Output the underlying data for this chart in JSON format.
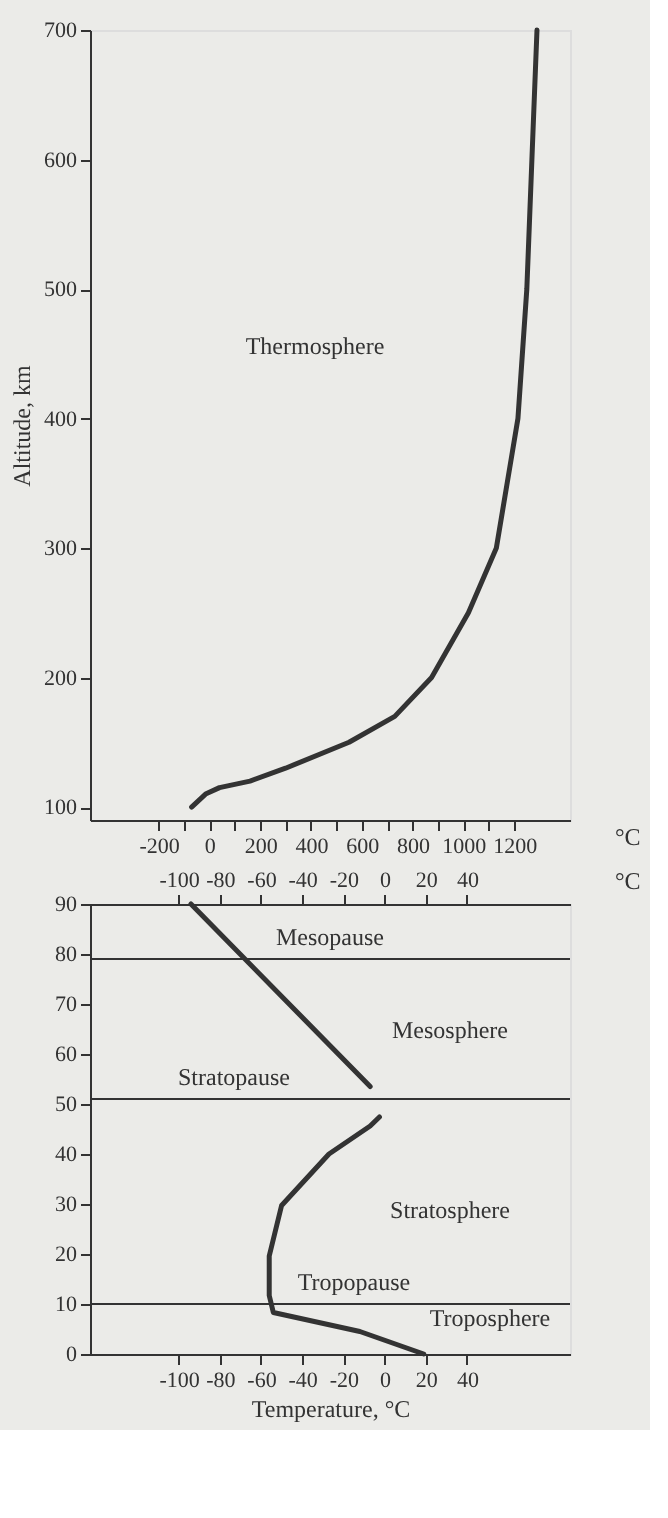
{
  "chart_data": [
    {
      "type": "line",
      "ylabel": "Altitude, km",
      "xlabel": "°C",
      "xlim": [
        -470,
        1420
      ],
      "ylim": [
        90,
        700
      ],
      "grid": false,
      "xticks": [
        -200,
        {
          "value": -100,
          "label": null
        },
        0,
        {
          "value": 100,
          "label": null
        },
        200,
        {
          "value": 300,
          "label": null
        },
        400,
        {
          "value": 500,
          "label": null
        },
        600,
        {
          "value": 700,
          "label": null
        },
        800,
        {
          "value": 900,
          "label": null
        },
        1000,
        {
          "value": 1100,
          "label": null
        },
        1200
      ],
      "yticks": [
        100,
        200,
        300,
        400,
        500,
        600,
        700
      ],
      "series": [
        {
          "color": "#333333",
          "x": [
            -70,
            -15,
            40,
            160,
            300,
            550,
            730,
            875,
            1020,
            1130,
            1215,
            1250,
            1270,
            1290
          ],
          "values": [
            100,
            110,
            115,
            120,
            130,
            150,
            170,
            200,
            250,
            300,
            400,
            500,
            600,
            700
          ]
        }
      ],
      "annotations": [
        "Thermosphere"
      ]
    },
    {
      "type": "line",
      "xlabel": "Temperature, °C",
      "x2label": "°C",
      "xlim": [
        -143,
        90
      ],
      "x2lim": [
        -143,
        90
      ],
      "ylim": [
        0,
        90
      ],
      "grid": false,
      "xticks": [
        -100,
        -80,
        -60,
        -40,
        -20,
        0,
        20,
        40
      ],
      "x2ticks": [
        -100,
        -80,
        -60,
        -40,
        -20,
        0,
        20,
        40
      ],
      "yticks": [
        0,
        10,
        20,
        30,
        40,
        50,
        60,
        70,
        80,
        90
      ],
      "series": [
        {
          "color": "#333333",
          "x": [
            19,
            -12,
            -54,
            -56,
            -56,
            -50,
            -27,
            -7,
            -2.5
          ],
          "values": [
            0,
            4.5,
            8.3,
            11.7,
            19.6,
            29.7,
            40,
            45.6,
            47.4
          ]
        },
        {
          "color": "#333333",
          "x": [
            -7,
            -94
          ],
          "values": [
            53.5,
            90
          ]
        }
      ],
      "ref_lines": [
        {
          "axis": "y",
          "value": 79,
          "label": "Mesopause"
        },
        {
          "axis": "y",
          "value": 51,
          "label": "Stratopause"
        },
        {
          "axis": "y",
          "value": 10,
          "label": "Tropopause"
        }
      ],
      "annotations": [
        "Mesosphere",
        "Stratosphere",
        "Troposphere"
      ]
    }
  ]
}
